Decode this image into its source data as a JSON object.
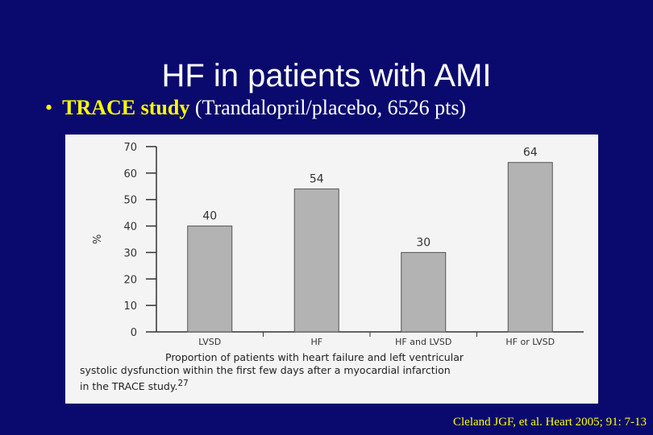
{
  "slide": {
    "title": "HF in patients with AMI",
    "bullet": {
      "marker": "•",
      "study_prefix": "TRACE",
      "study_word": "study",
      "detail": "(Trandalopril/placebo, 6526 pts)"
    },
    "citation": "Cleland JGF, et al. Heart 2005; 91: 7-13"
  },
  "figure": {
    "caption_line1": "Proportion of patients with heart failure and left ventricular",
    "caption_line2": "systolic dysfunction within the first few days after a myocardial infarction",
    "caption_line3": "in the TRACE study.",
    "caption_ref": "27"
  },
  "colors": {
    "background": "#0a0a6e",
    "text": "#ffffff",
    "highlight": "#ffff00",
    "bar_fill": "#b3b3b3",
    "bar_stroke": "#555555"
  },
  "chart_data": {
    "type": "bar",
    "title": "",
    "xlabel": "",
    "ylabel": "%",
    "categories": [
      "LVSD",
      "HF",
      "HF and LVSD",
      "HF or LVSD"
    ],
    "values": [
      40,
      54,
      30,
      64
    ],
    "data_labels": [
      "40",
      "54",
      "30",
      "64"
    ],
    "ylim": [
      0,
      70
    ],
    "yticks": [
      "0",
      "10",
      "20",
      "30",
      "40",
      "50",
      "60",
      "70"
    ],
    "grid": false,
    "legend": "none"
  }
}
